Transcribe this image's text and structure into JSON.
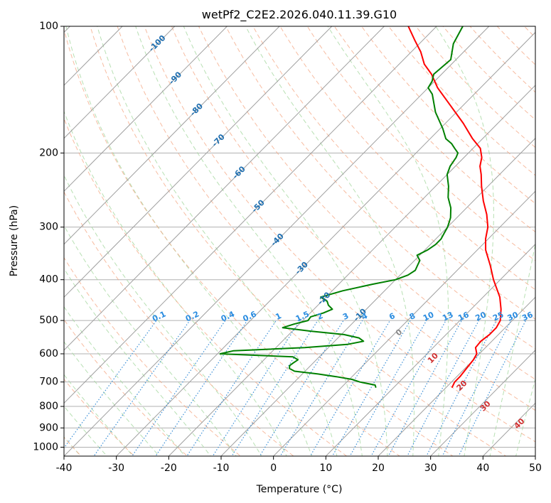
{
  "chart_data": {
    "type": "line",
    "diagram": "skew-T log-P",
    "title": "wetPf2_C2E2.2026.040.11.39.G10",
    "xlabel": "Temperature (°C)",
    "ylabel": "Pressure (hPa)",
    "xlim": [
      -40,
      50
    ],
    "ylim": [
      1050,
      100
    ],
    "y_scale": "log",
    "x_ticks": [
      -40,
      -30,
      -20,
      -10,
      0,
      10,
      20,
      30,
      40,
      50
    ],
    "y_ticks": [
      100,
      200,
      300,
      400,
      500,
      600,
      700,
      800,
      900,
      1000
    ],
    "grid": true,
    "series": [
      {
        "role": "temperature",
        "color": "#ff0000",
        "p": [
          720,
          700,
          680,
          650,
          620,
          600,
          580,
          560,
          540,
          520,
          500,
          470,
          440,
          400,
          370,
          340,
          320,
          300,
          280,
          260,
          240,
          225,
          215,
          205,
          195,
          185,
          170,
          155,
          140,
          130,
          123,
          115,
          108,
          100
        ],
        "t": [
          21.1,
          20.6,
          20.6,
          20.3,
          20.0,
          19.5,
          18.1,
          17.9,
          18.3,
          18.3,
          17.7,
          15.7,
          13.2,
          8.7,
          5.4,
          1.6,
          -0.5,
          -2.3,
          -4.9,
          -8.1,
          -11.2,
          -13.5,
          -15.3,
          -16.6,
          -18.6,
          -21.9,
          -26.6,
          -32.1,
          -38.2,
          -41.9,
          -45.2,
          -48.2,
          -51.5,
          -55.4
        ]
      },
      {
        "role": "dewpoint",
        "color": "#008000",
        "p": [
          720,
          712,
          700,
          690,
          680,
          670,
          660,
          650,
          640,
          630,
          620,
          610,
          600,
          590,
          580,
          570,
          560,
          550,
          540,
          530,
          520,
          510,
          500,
          490,
          480,
          470,
          460,
          450,
          440,
          425,
          410,
          400,
          390,
          380,
          370,
          360,
          350,
          340,
          330,
          320,
          310,
          300,
          285,
          270,
          255,
          240,
          225,
          215,
          205,
          200,
          195,
          190,
          185,
          175,
          160,
          145,
          140,
          135,
          130,
          120,
          110,
          100
        ],
        "t": [
          6.5,
          6.0,
          2.5,
          0.5,
          -3.0,
          -7.0,
          -12.0,
          -13.5,
          -14.0,
          -13.8,
          -13.5,
          -15.0,
          -29.5,
          -27.5,
          -14.5,
          -7.0,
          -4.5,
          -6.0,
          -9.5,
          -16.5,
          -22.5,
          -21.0,
          -19.0,
          -19.2,
          -17.5,
          -16.5,
          -18.0,
          -19.0,
          -21.0,
          -18.0,
          -13.5,
          -10.0,
          -8.5,
          -8.0,
          -8.5,
          -9.0,
          -10.5,
          -9.5,
          -9.0,
          -9.0,
          -9.5,
          -10.0,
          -11.2,
          -13.0,
          -15.5,
          -17.5,
          -20.0,
          -21.0,
          -21.5,
          -22.0,
          -23.5,
          -25.0,
          -27.0,
          -29.5,
          -34.0,
          -38.0,
          -40.0,
          -40.5,
          -41.5,
          -41.0,
          -43.5,
          -45.0
        ]
      }
    ],
    "isotherm_labels": [
      "-100",
      "-90",
      "-80",
      "-70",
      "-60",
      "-50",
      "-40",
      "-30",
      "-20",
      "-10"
    ],
    "mixing_ratio_labels": [
      "0.1",
      "0.2",
      "0.4",
      "0.6",
      "1",
      "1.5",
      "2",
      "3",
      "4",
      "6",
      "8",
      "10",
      "13",
      "16",
      "20",
      "25",
      "30",
      "36"
    ],
    "dry_adiabat_labels": [
      "10",
      "20",
      "30",
      "40"
    ],
    "moist_adiabat_label": "0",
    "colors": {
      "isotherm": "#a0a0a0",
      "dry_adiabat": "#f4a582",
      "moist_adiabat": "#a6d8a0",
      "mixing_ratio": "#3b8fd6",
      "grid": "#b0b0b0"
    }
  }
}
